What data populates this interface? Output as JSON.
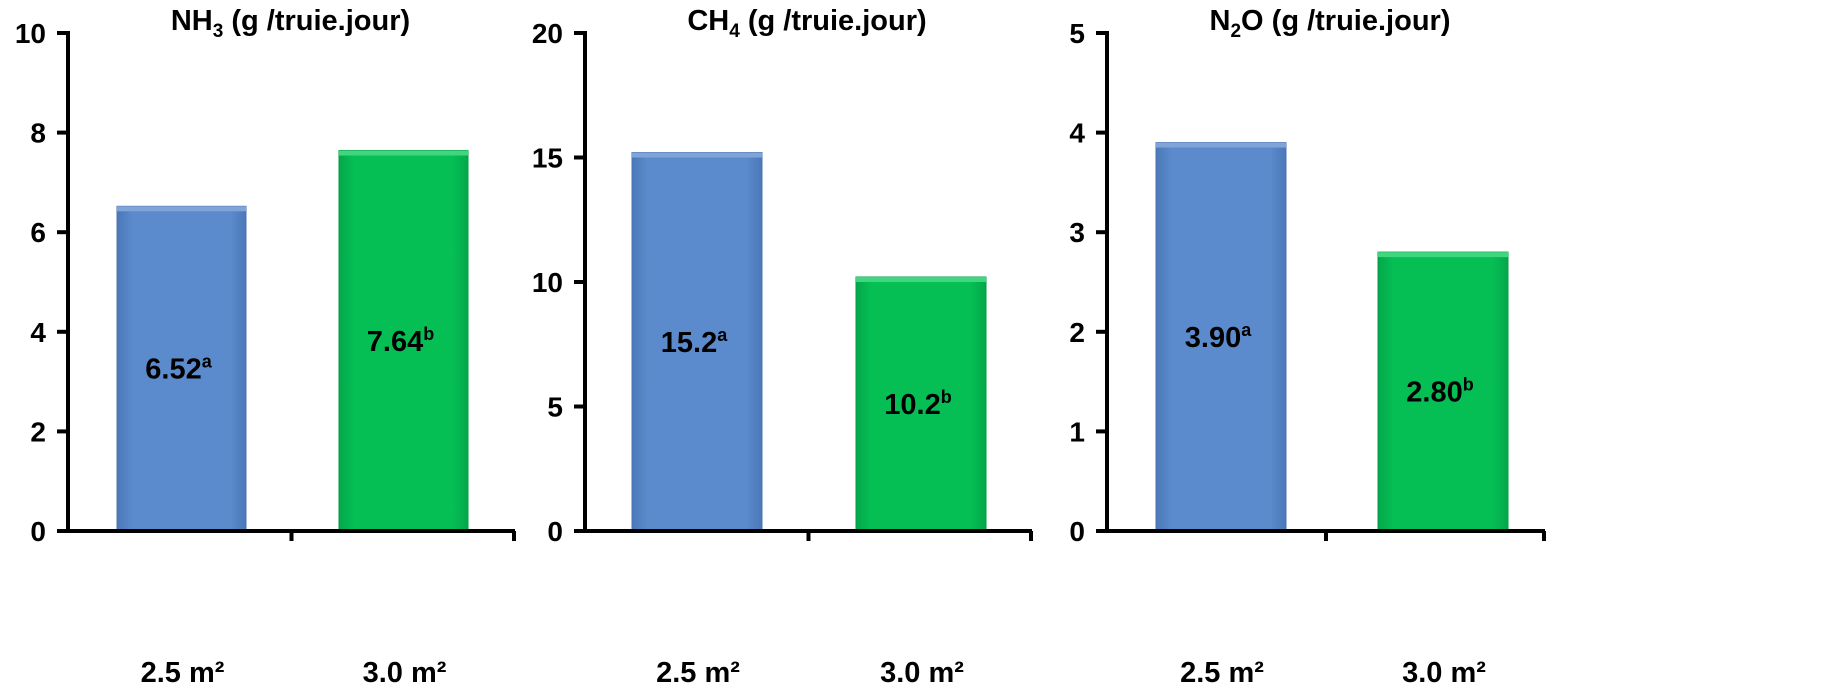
{
  "chart_data": [
    {
      "type": "bar",
      "title_main": "NH",
      "title_sub": "3",
      "title_rest": " (g /truie.jour)",
      "categories": [
        "2.5 m²",
        "3.0 m²"
      ],
      "values": [
        6.52,
        7.64
      ],
      "value_labels": [
        "6.52",
        "7.64"
      ],
      "superscripts": [
        "a",
        "b"
      ],
      "colors": [
        "#5b8bcc",
        "#05bf55"
      ],
      "ylim": [
        0,
        10
      ],
      "yticks": [
        0,
        2,
        4,
        6,
        8,
        10
      ],
      "grid": false
    },
    {
      "type": "bar",
      "title_main": "CH",
      "title_sub": "4",
      "title_rest": " (g /truie.jour)",
      "categories": [
        "2.5 m²",
        "3.0 m²"
      ],
      "values": [
        15.2,
        10.2
      ],
      "value_labels": [
        "15.2",
        "10.2"
      ],
      "superscripts": [
        "a",
        "b"
      ],
      "colors": [
        "#5b8bcc",
        "#05bf55"
      ],
      "ylim": [
        0,
        20
      ],
      "yticks": [
        0,
        5,
        10,
        15,
        20
      ],
      "grid": false
    },
    {
      "type": "bar",
      "title_main": "N",
      "title_sub": "2",
      "title_rest": "O (g /truie.jour)",
      "categories": [
        "2.5 m²",
        "3.0 m²"
      ],
      "values": [
        3.9,
        2.8
      ],
      "value_labels": [
        "3.90",
        "2.80"
      ],
      "superscripts": [
        "a",
        "b"
      ],
      "colors": [
        "#5b8bcc",
        "#05bf55"
      ],
      "ylim": [
        0,
        5
      ],
      "yticks": [
        0,
        1,
        2,
        3,
        4,
        5
      ],
      "grid": false
    }
  ]
}
